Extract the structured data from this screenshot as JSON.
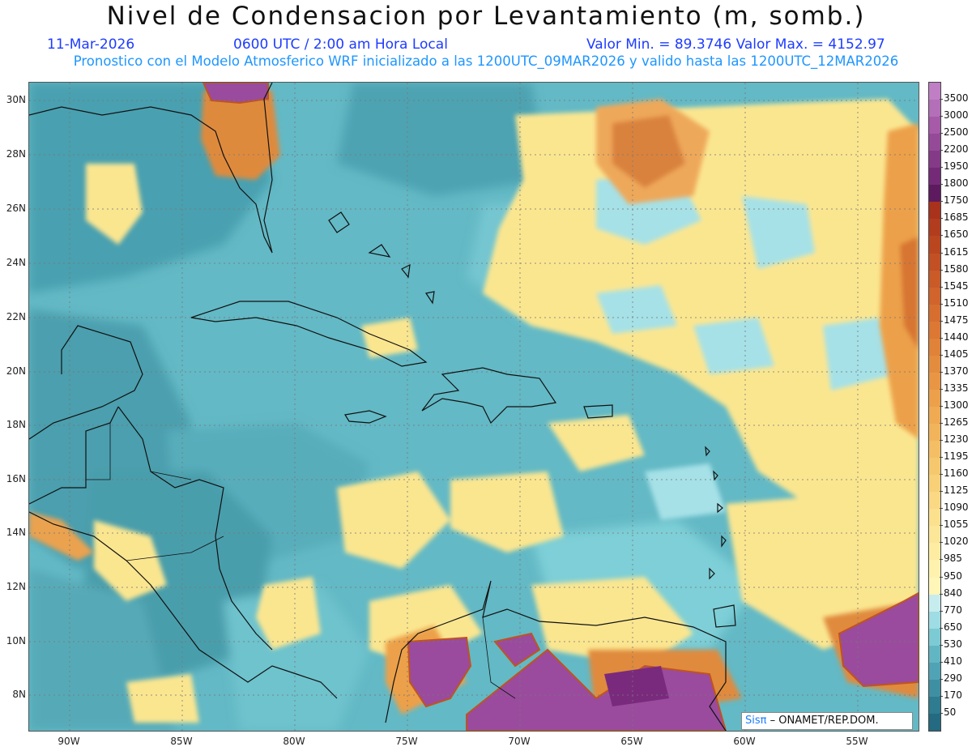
{
  "title": "Nivel de Condensacion por Levantamiento (m, somb.)",
  "date": "11-Mar-2026",
  "time": "0600 UTC / 2:00 am Hora Local",
  "minmax": "Valor Min. = 89.3746   Valor Max. = 4152.97",
  "model_line": "Pronostico con el Modelo Atmosferico WRF inicializado a las 1200UTC_09MAR2026 y valido hasta las  1200UTC_12MAR2026",
  "lat_labels": [
    "30N",
    "28N",
    "26N",
    "24N",
    "22N",
    "20N",
    "18N",
    "16N",
    "14N",
    "12N",
    "10N",
    "8N"
  ],
  "lon_labels": [
    "90W",
    "85W",
    "80W",
    "75W",
    "70W",
    "65W",
    "60W",
    "55W"
  ],
  "colorbar": {
    "labels": [
      "3500",
      "3000",
      "2500",
      "2200",
      "1950",
      "1800",
      "1750",
      "1685",
      "1650",
      "1615",
      "1580",
      "1545",
      "1510",
      "1475",
      "1440",
      "1405",
      "1370",
      "1335",
      "1300",
      "1265",
      "1230",
      "1195",
      "1160",
      "1125",
      "1090",
      "1055",
      "1020",
      "985",
      "950",
      "840",
      "770",
      "650",
      "530",
      "410",
      "290",
      "170",
      "50"
    ],
    "colors": [
      "#b36fb8",
      "#a65aa8",
      "#954a98",
      "#853a88",
      "#752a78",
      "#5e1a5e",
      "#a8321c",
      "#b23c1e",
      "#ba4620",
      "#c25024",
      "#ca5a28",
      "#d0642c",
      "#d66e30",
      "#dc7834",
      "#e08238",
      "#e48c3e",
      "#e89644",
      "#eca04a",
      "#efaa52",
      "#f2b45a",
      "#f4be64",
      "#f6c86e",
      "#f8d078",
      "#fad884",
      "#fbe08e",
      "#fce698",
      "#fdeca2",
      "#fef2ae",
      "#fff6b8",
      "#c6ecee",
      "#9ddde3",
      "#7ccbd4",
      "#62b6c4",
      "#4fa3b4",
      "#3f8fa2",
      "#2f7b90",
      "#246a80"
    ]
  },
  "credit_brand": "Sisπ",
  "credit_org": "– ONAMET/REP.DOM."
}
